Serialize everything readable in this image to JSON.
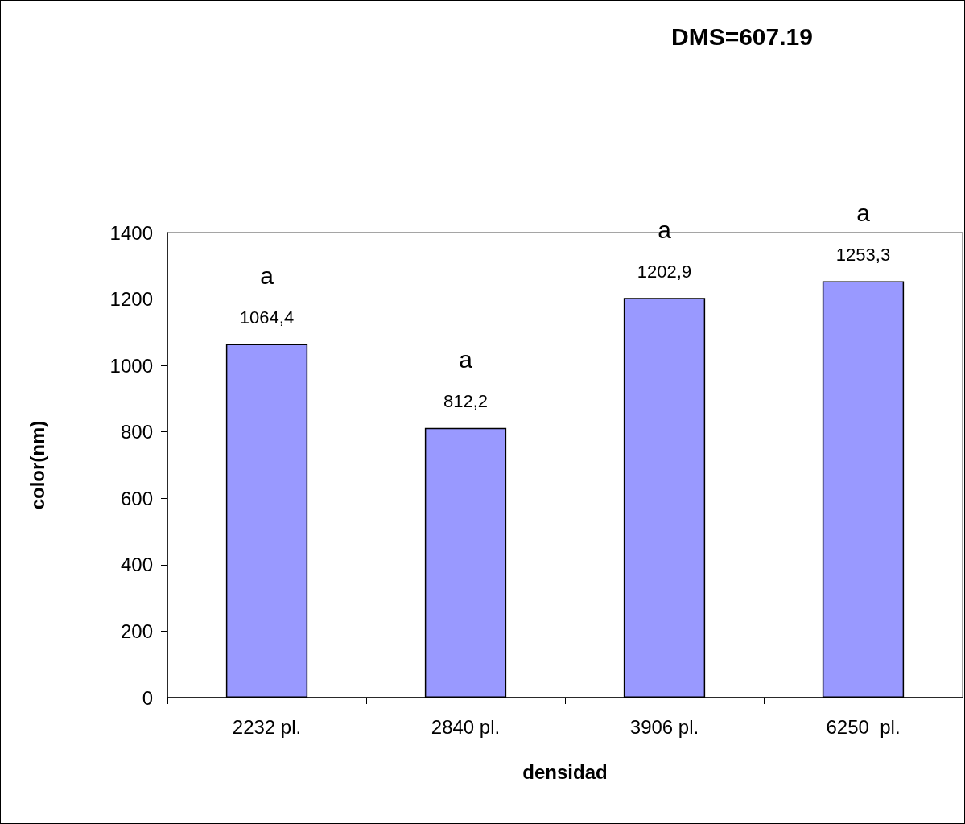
{
  "chart_data": {
    "type": "bar",
    "title": "DMS=607.19",
    "xlabel": "densidad",
    "ylabel": "color(nm)",
    "categories": [
      "2232 pl.",
      "2840 pl.",
      "3906 pl.",
      "6250  pl."
    ],
    "values": [
      1064.4,
      812.2,
      1202.9,
      1253.3
    ],
    "value_labels": [
      "1064,4",
      "812,2",
      "1202,9",
      "1253,3"
    ],
    "color": "#9999ff",
    "ylim": [
      0,
      1400
    ],
    "yticks": [
      0,
      200,
      400,
      600,
      800,
      1000,
      1200,
      1400
    ],
    "grid": false,
    "annotations": [
      "a",
      "a",
      "a",
      "a"
    ]
  }
}
